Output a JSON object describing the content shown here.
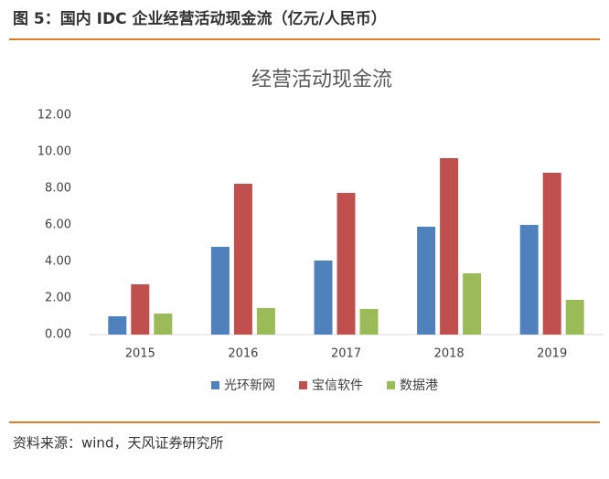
{
  "figure_title": "图 5：国内 IDC 企业经营活动现金流（亿元/人民币）",
  "source": "资料来源：wind，天风证券研究所",
  "chart_data": {
    "type": "bar",
    "title": "经营活动现金流",
    "categories": [
      "2015",
      "2016",
      "2017",
      "2018",
      "2019"
    ],
    "series": [
      {
        "name": "光环新网",
        "color": "#4f81bd",
        "values": [
          1.0,
          4.8,
          4.05,
          5.9,
          6.0
        ]
      },
      {
        "name": "宝信软件",
        "color": "#c0504d",
        "values": [
          2.75,
          8.25,
          7.75,
          9.65,
          8.85
        ]
      },
      {
        "name": "数据港",
        "color": "#9bbb59",
        "values": [
          1.15,
          1.45,
          1.4,
          3.35,
          1.9
        ]
      }
    ],
    "ylim": [
      0,
      12
    ],
    "yticks": [
      {
        "value": 0,
        "label": "0.00"
      },
      {
        "value": 2,
        "label": "2.00"
      },
      {
        "value": 4,
        "label": "4.00"
      },
      {
        "value": 6,
        "label": "6.00"
      },
      {
        "value": 8,
        "label": "8.00"
      },
      {
        "value": 10,
        "label": "10.00"
      },
      {
        "value": 12,
        "label": "12.00"
      }
    ],
    "grid": false,
    "legend": "bottom"
  }
}
